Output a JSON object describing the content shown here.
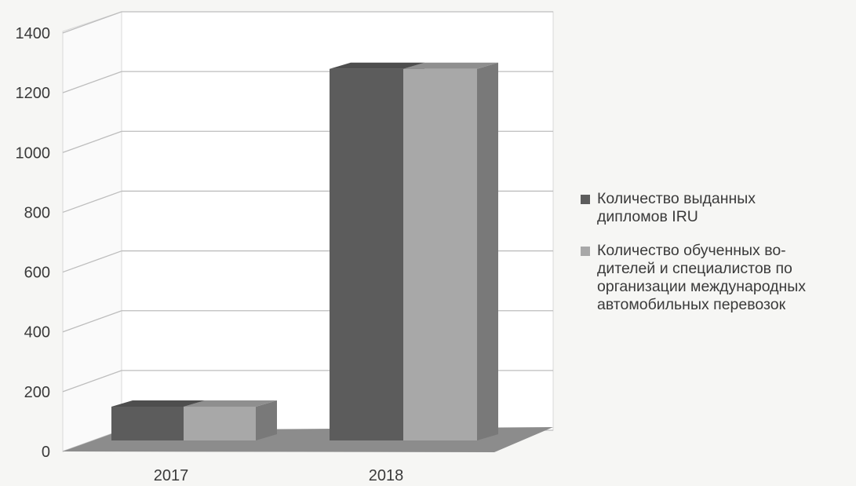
{
  "chart_data": {
    "type": "bar",
    "style": "3d-clustered-column",
    "categories": [
      "2017",
      "2018"
    ],
    "series": [
      {
        "name": "Количество выданных дипломов IRU",
        "name_lines": [
          "Количество выданных",
          "дипломов IRU"
        ],
        "values": [
          120,
          1320
        ],
        "color": "#5c5c5c"
      },
      {
        "name": "Количество обученных водителей и специалистов по организации международных автомобильных перевозок",
        "name_lines": [
          "Количество обученных во-",
          "дителей и специалистов по",
          "организации международных",
          "автомобильных перевозок"
        ],
        "values": [
          120,
          1320
        ],
        "color": "#a8a8a8"
      }
    ],
    "title": "",
    "xlabel": "",
    "ylabel": "",
    "ylim": [
      0,
      1400
    ],
    "yticks": [
      0,
      200,
      400,
      600,
      800,
      1000,
      1200,
      1400
    ],
    "grid": true,
    "legend": "right"
  }
}
